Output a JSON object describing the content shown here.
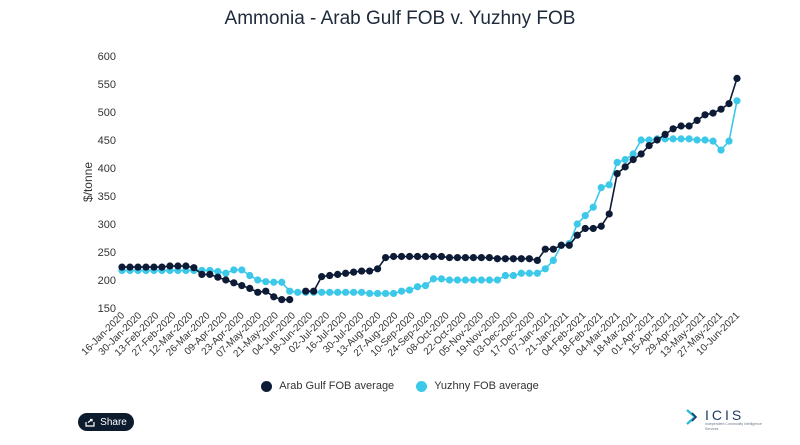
{
  "chart_data": {
    "type": "line",
    "title": "Ammonia - Arab Gulf FOB v. Yuzhny FOB",
    "ylabel": "$/tonne",
    "ylim": [
      150,
      600
    ],
    "yticks": [
      150,
      200,
      250,
      300,
      350,
      400,
      450,
      500,
      550,
      600
    ],
    "grid": false,
    "legend_position": "bottom-center",
    "x_tick_labels": [
      "16-Jan-2020",
      "30-Jan-2020",
      "13-Feb-2020",
      "27-Feb-2020",
      "12-Mar-2020",
      "26-Mar-2020",
      "09-Apr-2020",
      "23-Apr-2020",
      "07-May-2020",
      "21-May-2020",
      "04-Jun-2020",
      "18-Jun-2020",
      "02-Jul-2020",
      "16-Jul-2020",
      "30-Jul-2020",
      "13-Aug-2020",
      "27-Aug-2020",
      "10-Sep-2020",
      "24-Sep-2020",
      "08-Oct-2020",
      "22-Oct-2020",
      "05-Nov-2020",
      "19-Nov-2020",
      "03-Dec-2020",
      "17-Dec-2020",
      "07-Jan-2021",
      "21-Jan-2021",
      "04-Feb-2021",
      "18-Feb-2021",
      "04-Mar-2021",
      "18-Mar-2021",
      "01-Apr-2021",
      "15-Apr-2021",
      "29-Apr-2021",
      "13-May-2021",
      "27-May-2021",
      "10-Jun-2021"
    ],
    "series": [
      {
        "name": "Arab Gulf FOB average",
        "color": "#0d1b36",
        "values": [
          223,
          223,
          223,
          223,
          223,
          223,
          225,
          225,
          225,
          222,
          210,
          210,
          205,
          200,
          195,
          190,
          185,
          178,
          180,
          170,
          165,
          165,
          null,
          180,
          180,
          206,
          208,
          210,
          212,
          214,
          216,
          216,
          220,
          240,
          242,
          242,
          242,
          242,
          242,
          242,
          242,
          240,
          240,
          240,
          240,
          240,
          240,
          238,
          238,
          238,
          238,
          238,
          235,
          255,
          255,
          262,
          262,
          280,
          292,
          292,
          296,
          318,
          390,
          402,
          415,
          425,
          440,
          450,
          460,
          470,
          475,
          475,
          485,
          495,
          498,
          505,
          515,
          560
        ]
      },
      {
        "name": "Yuzhny FOB average",
        "color": "#3cc8e8",
        "values": [
          217,
          217,
          217,
          217,
          217,
          217,
          217,
          217,
          217,
          217,
          217,
          217,
          215,
          212,
          218,
          218,
          208,
          200,
          197,
          196,
          196,
          180,
          178,
          178,
          178,
          178,
          178,
          178,
          178,
          178,
          178,
          176,
          176,
          176,
          176,
          180,
          182,
          188,
          190,
          202,
          202,
          200,
          200,
          200,
          200,
          200,
          200,
          200,
          208,
          208,
          212,
          212,
          212,
          220,
          235,
          262,
          265,
          300,
          315,
          330,
          365,
          370,
          410,
          415,
          425,
          450,
          450,
          452,
          452,
          452,
          452,
          452,
          450,
          450,
          448,
          432,
          448,
          520
        ]
      }
    ]
  },
  "legend": {
    "items": [
      "Arab Gulf FOB average",
      "Yuzhny FOB average"
    ]
  },
  "share": {
    "label": "Share",
    "icon": "share-icon"
  },
  "logo": {
    "word": "ICIS",
    "tagline": "Independent Commodity Intelligence Services"
  }
}
